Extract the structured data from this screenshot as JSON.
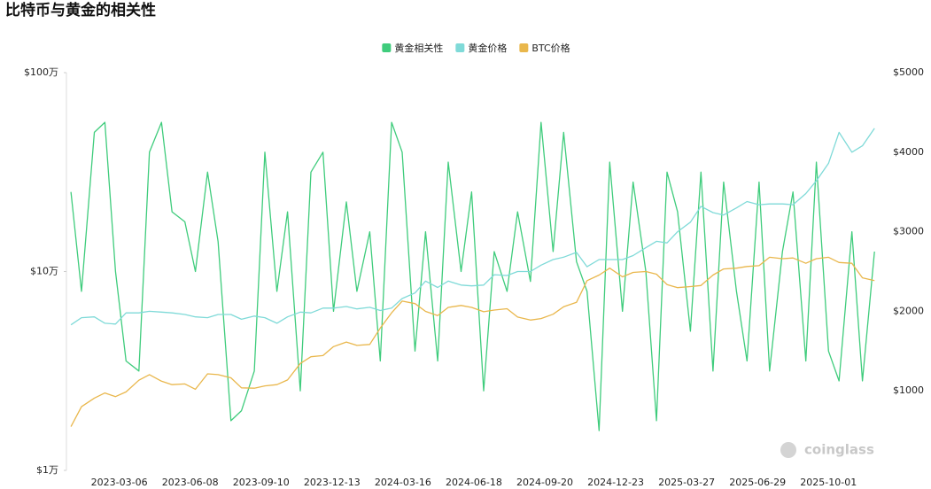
{
  "chart_data": {
    "type": "line",
    "title": "比特币与黄金的相关性",
    "watermark": "coinglass",
    "legend": "top",
    "x": [
      "2023-01-01",
      "2023-01-15",
      "2023-02-01",
      "2023-02-15",
      "2023-03-01",
      "2023-03-15",
      "2023-04-01",
      "2023-04-15",
      "2023-05-01",
      "2023-05-15",
      "2023-06-01",
      "2023-06-15",
      "2023-07-01",
      "2023-07-15",
      "2023-08-01",
      "2023-08-15",
      "2023-09-01",
      "2023-09-15",
      "2023-10-01",
      "2023-10-15",
      "2023-11-01",
      "2023-11-15",
      "2023-12-01",
      "2023-12-15",
      "2024-01-01",
      "2024-01-15",
      "2024-02-01",
      "2024-02-15",
      "2024-03-01",
      "2024-03-15",
      "2024-04-01",
      "2024-04-15",
      "2024-05-01",
      "2024-05-15",
      "2024-06-01",
      "2024-06-15",
      "2024-07-01",
      "2024-07-15",
      "2024-08-01",
      "2024-08-15",
      "2024-09-01",
      "2024-09-15",
      "2024-10-01",
      "2024-10-15",
      "2024-11-01",
      "2024-11-15",
      "2024-12-01",
      "2024-12-15",
      "2025-01-01",
      "2025-01-15",
      "2025-02-01",
      "2025-02-15",
      "2025-03-01",
      "2025-03-15",
      "2025-04-01",
      "2025-04-15",
      "2025-05-01",
      "2025-05-15",
      "2025-06-01",
      "2025-06-15",
      "2025-07-01",
      "2025-07-15",
      "2025-08-01",
      "2025-08-15",
      "2025-09-01",
      "2025-09-15",
      "2025-10-01",
      "2025-10-15",
      "2025-11-01",
      "2025-11-15",
      "2025-12-01"
    ],
    "series": [
      {
        "name": "黄金相关性",
        "color": "#3fcc7c",
        "axis": "y3",
        "values": [
          0.4,
          -0.1,
          0.7,
          0.75,
          0.0,
          -0.45,
          -0.5,
          0.6,
          0.75,
          0.3,
          0.25,
          0.0,
          0.5,
          0.15,
          -0.75,
          -0.7,
          -0.5,
          0.6,
          -0.1,
          0.3,
          -0.6,
          0.5,
          0.6,
          -0.2,
          0.35,
          -0.1,
          0.2,
          -0.45,
          0.75,
          0.6,
          -0.4,
          0.2,
          -0.45,
          0.55,
          0.0,
          0.4,
          -0.6,
          0.1,
          -0.1,
          0.3,
          -0.05,
          0.75,
          0.1,
          0.7,
          0.05,
          -0.1,
          -0.8,
          0.55,
          -0.2,
          0.45,
          0.0,
          -0.75,
          0.5,
          0.3,
          -0.3,
          0.5,
          -0.5,
          0.45,
          -0.1,
          -0.45,
          0.45,
          -0.5,
          0.1,
          0.4,
          -0.45,
          0.55,
          -0.4,
          -0.55,
          0.2,
          -0.55,
          0.1
        ]
      },
      {
        "name": "黄金价格",
        "color": "#7fdad8",
        "axis": "y2",
        "values": [
          1830,
          1920,
          1930,
          1850,
          1840,
          1980,
          1980,
          2000,
          1990,
          1980,
          1960,
          1930,
          1920,
          1960,
          1960,
          1900,
          1940,
          1920,
          1850,
          1930,
          1990,
          1980,
          2040,
          2040,
          2060,
          2030,
          2050,
          2010,
          2040,
          2160,
          2230,
          2380,
          2300,
          2380,
          2330,
          2320,
          2330,
          2460,
          2450,
          2500,
          2500,
          2580,
          2650,
          2680,
          2740,
          2560,
          2650,
          2650,
          2650,
          2700,
          2800,
          2880,
          2860,
          3000,
          3120,
          3320,
          3240,
          3210,
          3300,
          3380,
          3340,
          3350,
          3350,
          3340,
          3480,
          3640,
          3860,
          4250,
          4000,
          4080,
          4300
        ]
      },
      {
        "name": "BTC价格",
        "color": "#e9b74c",
        "axis": "y",
        "values": [
          16600,
          20900,
          23100,
          24500,
          23500,
          24800,
          28400,
          30300,
          28100,
          27000,
          27200,
          25600,
          30600,
          30300,
          29200,
          26000,
          25900,
          26600,
          27000,
          28500,
          34500,
          37300,
          37800,
          41900,
          44200,
          42500,
          43000,
          52000,
          62000,
          71000,
          69000,
          63000,
          60000,
          66000,
          67500,
          66000,
          62800,
          64000,
          65000,
          59000,
          57000,
          58000,
          61000,
          66500,
          70000,
          90000,
          96000,
          104000,
          94000,
          99000,
          100000,
          97000,
          86000,
          83000,
          84000,
          85000,
          96000,
          103000,
          104000,
          106000,
          107000,
          118000,
          116000,
          117000,
          110000,
          116000,
          118000,
          111000,
          110000,
          93000,
          90000
        ]
      }
    ],
    "xlim": [
      "2022-12-26",
      "2025-12-16"
    ],
    "xticks": [
      "2023-03-06",
      "2023-06-08",
      "2023-09-10",
      "2023-12-13",
      "2024-03-16",
      "2024-06-18",
      "2024-09-20",
      "2024-12-23",
      "2025-03-27",
      "2025-06-29",
      "2025-10-01"
    ],
    "ylog": true,
    "ylim": [
      10000,
      1000000
    ],
    "yticks": [
      {
        "value": 10000,
        "label": "$1万"
      },
      {
        "value": 100000,
        "label": "$10万"
      },
      {
        "value": 1000000,
        "label": "$100万"
      }
    ],
    "y2lim": [
      0,
      5000
    ],
    "y2ticks": [
      {
        "value": 1000,
        "label": "$1000"
      },
      {
        "value": 2000,
        "label": "$2000"
      },
      {
        "value": 3000,
        "label": "$3000"
      },
      {
        "value": 4000,
        "label": "$4000"
      },
      {
        "value": 5000,
        "label": "$5000"
      }
    ],
    "y3lim": [
      -1,
      1
    ]
  }
}
